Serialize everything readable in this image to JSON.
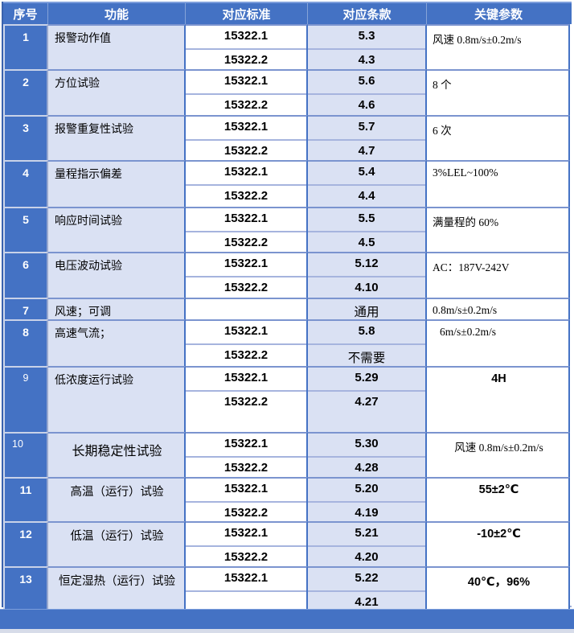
{
  "table": {
    "headers": [
      "序号",
      "功能",
      "对应标准",
      "对应条款",
      "关键参数"
    ],
    "rows": [
      {
        "no": "1",
        "function": "报警动作值",
        "subs": [
          {
            "std": "15322.1",
            "clause": "5.3"
          },
          {
            "std": "15322.2",
            "clause": "4.3"
          }
        ],
        "param": "风速 0.8m/s±0.2m/s"
      },
      {
        "no": "2",
        "function": "方位试验",
        "subs": [
          {
            "std": "15322.1",
            "clause": "5.6"
          },
          {
            "std": "15322.2",
            "clause": "4.6"
          }
        ],
        "param": "8 个"
      },
      {
        "no": "3",
        "function": "报警重复性试验",
        "subs": [
          {
            "std": "15322.1",
            "clause": "5.7"
          },
          {
            "std": "15322.2",
            "clause": "4.7"
          }
        ],
        "param": "6 次"
      },
      {
        "no": "4",
        "function": "量程指示偏差",
        "subs": [
          {
            "std": "15322.1",
            "clause": "5.4"
          },
          {
            "std": "15322.2",
            "clause": "4.4"
          }
        ],
        "param": "3%LEL~100%"
      },
      {
        "no": "5",
        "function": "响应时间试验",
        "subs": [
          {
            "std": "15322.1",
            "clause": "5.5"
          },
          {
            "std": "15322.2",
            "clause": "4.5"
          }
        ],
        "param": "满量程的 60%"
      },
      {
        "no": "6",
        "function": "电压波动试验",
        "subs": [
          {
            "std": "15322.1",
            "clause": "5.12"
          },
          {
            "std": "15322.2",
            "clause": "4.10"
          }
        ],
        "param": "AC：187V-242V"
      },
      {
        "no": "7",
        "function": "风速；可调",
        "subs": [
          {
            "std": "",
            "clause": "通用"
          }
        ],
        "param": "0.8m/s±0.2m/s"
      },
      {
        "no": "8",
        "function": "高速气流；",
        "subs": [
          {
            "std": "15322.1",
            "clause": "5.8"
          },
          {
            "std": "15322.2",
            "clause": "不需要"
          }
        ],
        "param": "6m/s±0.2m/s"
      },
      {
        "no": "9",
        "function": "低浓度运行试验",
        "subs": [
          {
            "std": "15322.1",
            "clause": "5.29"
          },
          {
            "std": "15322.2",
            "clause": "4.27"
          }
        ],
        "param": "4H"
      },
      {
        "no": "10",
        "function": "长期稳定性试验",
        "subs": [
          {
            "std": "15322.1",
            "clause": "5.30"
          },
          {
            "std": "15322.2",
            "clause": "4.28"
          }
        ],
        "param": "风速 0.8m/s±0.2m/s"
      },
      {
        "no": "11",
        "function": "高温（运行）试验",
        "subs": [
          {
            "std": "15322.1",
            "clause": "5.20"
          },
          {
            "std": "15322.2",
            "clause": "4.19"
          }
        ],
        "param": "55±2℃"
      },
      {
        "no": "12",
        "function": "低温（运行）试验",
        "subs": [
          {
            "std": "15322.1",
            "clause": "5.21"
          },
          {
            "std": "15322.2",
            "clause": "4.20"
          }
        ],
        "param": "-10±2℃"
      },
      {
        "no": "13",
        "function": "恒定湿热（运行）试验",
        "subs": [
          {
            "std": "15322.1",
            "clause": "5.22"
          },
          {
            "std": "",
            "clause": "4.21"
          }
        ],
        "param": "40℃，96%"
      }
    ]
  },
  "colors": {
    "accent_blue": "#4472C4",
    "light_cell": "#DAE1F3",
    "grid_line": "#4472C4",
    "sub_line": "#A6B4DE",
    "footer_strip": "#D7DCE9"
  }
}
